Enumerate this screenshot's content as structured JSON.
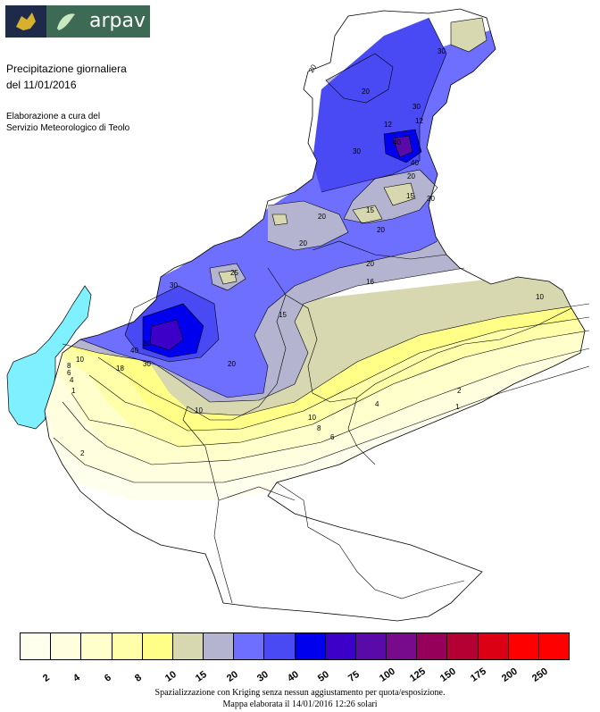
{
  "logo": {
    "text": "arpav"
  },
  "title": {
    "line1": "Precipitazione giornaliera",
    "line2": "del 11/01/2016"
  },
  "credit": {
    "line1": "Elaborazione a cura del",
    "line2": "Servizio Meteorologico di Teolo"
  },
  "legend": {
    "colors": [
      "#ffffee",
      "#ffffe0",
      "#ffffcc",
      "#ffffaa",
      "#ffff88",
      "#d8d8b0",
      "#b4b4d0",
      "#6e6eff",
      "#4a4af4",
      "#0000ee",
      "#3c00c8",
      "#5a0aa8",
      "#780a8c",
      "#96005a",
      "#b40032",
      "#dc0014",
      "#ff0000",
      "#ff0000"
    ],
    "labels": [
      "2",
      "4",
      "6",
      "8",
      "10",
      "15",
      "20",
      "30",
      "40",
      "50",
      "75",
      "100",
      "125",
      "150",
      "175",
      "200",
      "250"
    ],
    "lake_color": "#7ff0ff"
  },
  "contour_labels": [
    "20",
    "30",
    "20",
    "12",
    "30",
    "40",
    "20",
    "15",
    "30",
    "20",
    "15",
    "20",
    "25",
    "20",
    "30",
    "40",
    "18",
    "30",
    "20",
    "15",
    "10",
    "8",
    "6",
    "4",
    "2",
    "1",
    "10",
    "8",
    "6",
    "4",
    "2",
    "1",
    "10",
    "16",
    "20",
    "30",
    "40",
    "12",
    "10",
    "30"
  ],
  "footer": {
    "line1": "Spazializzazione con Kriging senza nessun aggiustamento per quota/esposizione.",
    "line2": "Mappa elaborata il 14/01/2016 12:26 solari"
  }
}
